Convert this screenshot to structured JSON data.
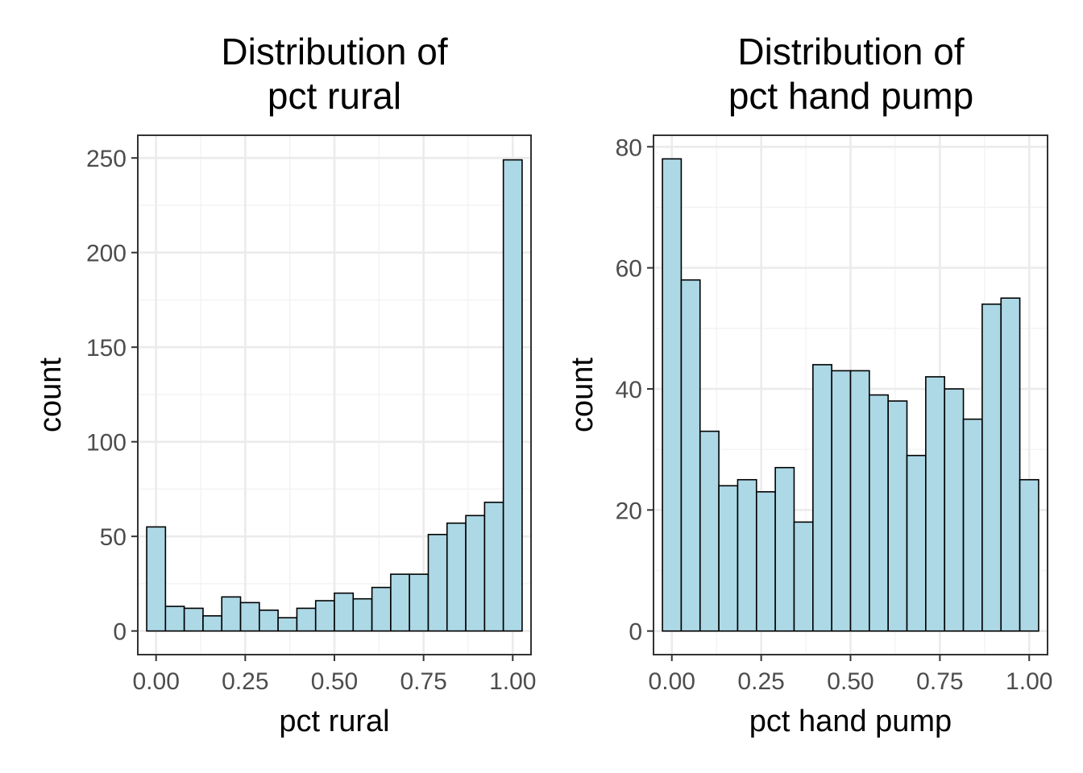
{
  "chart_data": [
    {
      "type": "bar",
      "title_lines": [
        "Distribution of",
        "pct rural"
      ],
      "xlabel": "pct rural",
      "ylabel": "count",
      "xlim": [
        -0.0513,
        1.0513
      ],
      "ylim": [
        -12.5,
        262
      ],
      "x_ticks": [
        0,
        0.25,
        0.5,
        0.75,
        1
      ],
      "x_tick_labels": [
        "0.00",
        "0.25",
        "0.50",
        "0.75",
        "1.00"
      ],
      "y_ticks": [
        0,
        50,
        100,
        150,
        200,
        250
      ],
      "y_tick_labels": [
        "0",
        "50",
        "100",
        "150",
        "200",
        "250"
      ],
      "bin_width": 0.0526,
      "bin_centers": [
        0,
        0.0526,
        0.1053,
        0.1579,
        0.2105,
        0.2632,
        0.3158,
        0.3684,
        0.4211,
        0.4737,
        0.5263,
        0.5789,
        0.6316,
        0.6842,
        0.7368,
        0.7895,
        0.8421,
        0.8947,
        0.9474,
        1
      ],
      "values": [
        55,
        13,
        12,
        8,
        18,
        15,
        11,
        7,
        12,
        16,
        20,
        17,
        23,
        30,
        30,
        51,
        57,
        61,
        68,
        249
      ],
      "grid": true
    },
    {
      "type": "bar",
      "title_lines": [
        "Distribution of",
        "pct hand pump"
      ],
      "xlabel": "pct hand pump",
      "ylabel": "count",
      "xlim": [
        -0.0513,
        1.0513
      ],
      "ylim": [
        -3.9,
        81.9
      ],
      "x_ticks": [
        0,
        0.25,
        0.5,
        0.75,
        1
      ],
      "x_tick_labels": [
        "0.00",
        "0.25",
        "0.50",
        "0.75",
        "1.00"
      ],
      "y_ticks": [
        0,
        20,
        40,
        60,
        80
      ],
      "y_tick_labels": [
        "0",
        "20",
        "40",
        "60",
        "80"
      ],
      "bin_width": 0.0526,
      "bin_centers": [
        0,
        0.0526,
        0.1053,
        0.1579,
        0.2105,
        0.2632,
        0.3158,
        0.3684,
        0.4211,
        0.4737,
        0.5263,
        0.5789,
        0.6316,
        0.6842,
        0.7368,
        0.7895,
        0.8421,
        0.8947,
        0.9474,
        1
      ],
      "values": [
        78,
        58,
        33,
        24,
        25,
        23,
        27,
        18,
        44,
        43,
        43,
        39,
        38,
        29,
        42,
        40,
        35,
        54,
        55,
        25
      ],
      "grid": true
    }
  ]
}
